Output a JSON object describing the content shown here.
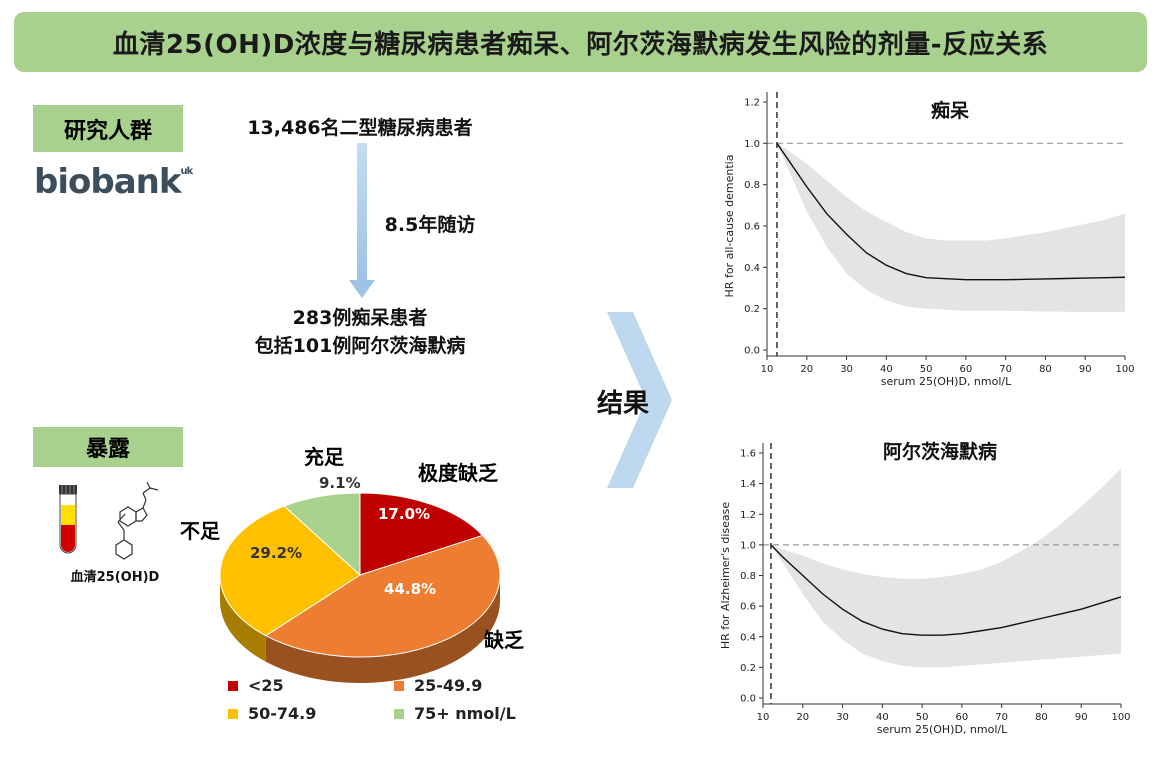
{
  "title": "血清25(OH)D浓度与糖尿病患者痴呆、阿尔茨海默病发生风险的剂量-反应关系",
  "study": {
    "section_label": "研究人群",
    "logo_text": "biobank",
    "logo_sup": "uk",
    "population": "13,486名二型糖尿病患者",
    "followup": "8.5年随访",
    "cases_line1": "283例痴呆患者",
    "cases_line2": "包括101例阿尔茨海默病"
  },
  "exposure": {
    "section_label": "暴露",
    "tube_caption": "血清25(OH)D",
    "tube_icon": "blood-tube-icon",
    "molecule_icon": "vitamin-d-molecule-icon"
  },
  "result_label": "结果",
  "pie": {
    "type": "pie",
    "slices": [
      {
        "category": "极度缺乏",
        "legend": "<25",
        "value": 17.0,
        "value_label": "17.0%",
        "color": "#c00000",
        "label_color": "#c00000"
      },
      {
        "category": "缺乏",
        "legend": "25-49.9",
        "value": 44.8,
        "value_label": "44.8%",
        "color": "#ed7d31",
        "label_color": "#8b4513"
      },
      {
        "category": "不足",
        "legend": "50-74.9",
        "value": 29.2,
        "value_label": "29.2%",
        "color": "#ffc000",
        "label_color": "#c9a000"
      },
      {
        "category": "充足",
        "legend": "75+ nmol/L",
        "value": 9.1,
        "value_label": "9.1%",
        "color": "#a9d18e",
        "label_color": "#1f3864"
      }
    ]
  },
  "chart_data": [
    {
      "type": "line",
      "title": "痴呆",
      "xlabel": "serum 25(OH)D, nmol/L",
      "ylabel": "HR for all-cause dementia",
      "xlim": [
        10,
        100
      ],
      "ylim": [
        0,
        1.2
      ],
      "xticks": [
        10,
        20,
        30,
        40,
        50,
        60,
        70,
        80,
        90,
        100
      ],
      "yticks": [
        0.0,
        0.2,
        0.4,
        0.6,
        0.8,
        1.0,
        1.2
      ],
      "ytick_labels": [
        "0.0",
        "0.2",
        "0.4",
        "0.6",
        "0.8",
        "1.0",
        "1.2"
      ],
      "reference_x": 12.5,
      "reference_y": 1.0,
      "x": [
        12.5,
        15,
        20,
        25,
        30,
        35,
        40,
        45,
        50,
        55,
        60,
        65,
        70,
        75,
        80,
        85,
        90,
        95,
        100
      ],
      "series": [
        {
          "name": "HR",
          "values": [
            1.0,
            0.93,
            0.79,
            0.66,
            0.56,
            0.47,
            0.41,
            0.37,
            0.35,
            0.345,
            0.34,
            0.34,
            0.34,
            0.342,
            0.344,
            0.346,
            0.348,
            0.35,
            0.352
          ]
        },
        {
          "name": "lower",
          "values": [
            1.0,
            0.89,
            0.67,
            0.5,
            0.37,
            0.29,
            0.24,
            0.21,
            0.2,
            0.195,
            0.19,
            0.19,
            0.19,
            0.188,
            0.186,
            0.185,
            0.184,
            0.184,
            0.185
          ]
        },
        {
          "name": "upper",
          "values": [
            1.0,
            0.97,
            0.9,
            0.82,
            0.74,
            0.67,
            0.62,
            0.57,
            0.54,
            0.53,
            0.53,
            0.53,
            0.54,
            0.555,
            0.57,
            0.59,
            0.61,
            0.63,
            0.66
          ]
        }
      ],
      "grid": false
    },
    {
      "type": "line",
      "title": "阿尔茨海默病",
      "xlabel": "serum 25(OH)D, nmol/L",
      "ylabel": "HR for Alzheimer's disease",
      "xlim": [
        10,
        100
      ],
      "ylim": [
        0,
        1.6
      ],
      "xticks": [
        10,
        20,
        30,
        40,
        50,
        60,
        70,
        80,
        90,
        100
      ],
      "yticks": [
        0.0,
        0.2,
        0.4,
        0.6,
        0.8,
        1.0,
        1.2,
        1.4,
        1.6
      ],
      "ytick_labels": [
        "0.0",
        "0.2",
        "0.4",
        "0.6",
        "0.8",
        "1.0",
        "1.2",
        "1.4",
        "1.6"
      ],
      "reference_x": 12,
      "reference_y": 1.0,
      "x": [
        12,
        15,
        20,
        25,
        30,
        35,
        40,
        45,
        50,
        55,
        60,
        65,
        70,
        75,
        80,
        85,
        90,
        95,
        100
      ],
      "series": [
        {
          "name": "HR",
          "values": [
            1.0,
            0.92,
            0.8,
            0.68,
            0.58,
            0.5,
            0.45,
            0.42,
            0.41,
            0.41,
            0.42,
            0.44,
            0.46,
            0.49,
            0.52,
            0.55,
            0.58,
            0.62,
            0.66
          ]
        },
        {
          "name": "lower",
          "values": [
            1.0,
            0.88,
            0.68,
            0.5,
            0.38,
            0.29,
            0.24,
            0.21,
            0.2,
            0.2,
            0.21,
            0.22,
            0.23,
            0.24,
            0.25,
            0.26,
            0.27,
            0.28,
            0.29
          ]
        },
        {
          "name": "upper",
          "values": [
            1.0,
            0.97,
            0.93,
            0.88,
            0.84,
            0.81,
            0.79,
            0.78,
            0.78,
            0.79,
            0.81,
            0.84,
            0.89,
            0.96,
            1.04,
            1.14,
            1.25,
            1.37,
            1.5
          ]
        }
      ],
      "grid": false
    }
  ]
}
